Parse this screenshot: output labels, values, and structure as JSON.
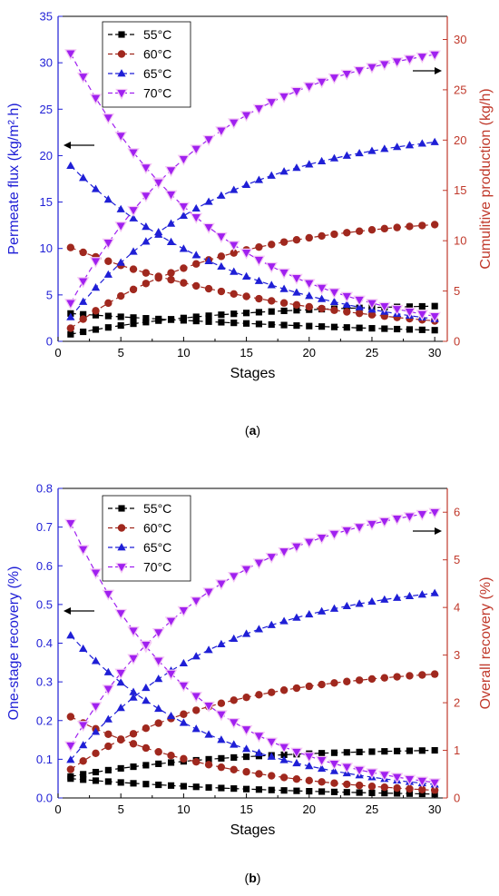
{
  "colors": {
    "left_axis": "#1f1fd6",
    "right_axis": "#c0392b",
    "black": "#000000",
    "s55": "#000000",
    "s60": "#a0281e",
    "s65": "#1f1fd6",
    "s70": "#a020f0"
  },
  "chart_data": [
    {
      "panel_label": "(a)",
      "type": "scatter",
      "xlabel": "Stages",
      "ylabel_left": "Permeate flux (kg/m².h)",
      "ylabel_right": "Cumulitive production (kg/h)",
      "xlim": [
        0,
        31
      ],
      "xticks": [
        0,
        5,
        10,
        15,
        20,
        25,
        30
      ],
      "ylim_left": [
        0,
        35
      ],
      "yticks_left": [
        0,
        5,
        10,
        15,
        20,
        25,
        30,
        35
      ],
      "ylim_right": [
        0,
        32.3
      ],
      "yticks_right": [
        0,
        5,
        10,
        15,
        20,
        25,
        30
      ],
      "legend": {
        "placement": "top-left",
        "entries": [
          "55°C",
          "60°C",
          "65°C",
          "70°C"
        ]
      },
      "arrows": {
        "left": "pointing-left",
        "right": "pointing-right"
      },
      "series": [
        {
          "name": "55°C",
          "axis": "left",
          "role": "flux",
          "first": 3.0,
          "last": 1.2,
          "shape": "exp"
        },
        {
          "name": "55°C",
          "axis": "right",
          "role": "cumulative",
          "first": 0.7,
          "last": 3.5,
          "shape": "cum"
        },
        {
          "name": "60°C",
          "axis": "left",
          "role": "flux",
          "first": 10.1,
          "last": 2.2,
          "shape": "exp"
        },
        {
          "name": "60°C",
          "axis": "right",
          "role": "cumulative",
          "first": 1.3,
          "last": 11.6,
          "shape": "cum"
        },
        {
          "name": "65°C",
          "axis": "left",
          "role": "flux",
          "first": 18.9,
          "last": 2.4,
          "shape": "exp"
        },
        {
          "name": "65°C",
          "axis": "right",
          "role": "cumulative",
          "first": 2.4,
          "last": 19.8,
          "shape": "cum"
        },
        {
          "name": "70°C",
          "axis": "left",
          "role": "flux",
          "first": 31.0,
          "last": 2.7,
          "shape": "exp"
        },
        {
          "name": "70°C",
          "axis": "right",
          "role": "cumulative",
          "first": 3.8,
          "last": 28.5,
          "shape": "cum"
        }
      ]
    },
    {
      "panel_label": "(b)",
      "type": "scatter",
      "xlabel": "Stages",
      "ylabel_left": "One-stage recovery (%)",
      "ylabel_right": "Overall recovery (%)",
      "xlim": [
        0,
        31
      ],
      "xticks": [
        0,
        5,
        10,
        15,
        20,
        25,
        30
      ],
      "ylim_left": [
        0,
        0.8
      ],
      "yticks_left": [
        0.0,
        0.1,
        0.2,
        0.3,
        0.4,
        0.5,
        0.6,
        0.7,
        0.8
      ],
      "ylim_right": [
        0,
        6.5
      ],
      "yticks_right": [
        0,
        1,
        2,
        3,
        4,
        5,
        6
      ],
      "legend": {
        "placement": "top-left",
        "entries": [
          "55°C",
          "60°C",
          "65°C",
          "70°C"
        ]
      },
      "arrows": {
        "left": "pointing-left",
        "right": "pointing-right"
      },
      "series": [
        {
          "name": "55°C",
          "axis": "left",
          "role": "one-stage",
          "first": 0.05,
          "last": 0.01,
          "shape": "exp"
        },
        {
          "name": "55°C",
          "axis": "right",
          "role": "overall",
          "first": 0.45,
          "last": 1.0,
          "shape": "cum"
        },
        {
          "name": "60°C",
          "axis": "left",
          "role": "one-stage",
          "first": 0.21,
          "last": 0.02,
          "shape": "exp"
        },
        {
          "name": "60°C",
          "axis": "right",
          "role": "overall",
          "first": 0.6,
          "last": 2.6,
          "shape": "cum"
        },
        {
          "name": "65°C",
          "axis": "left",
          "role": "one-stage",
          "first": 0.42,
          "last": 0.035,
          "shape": "exp"
        },
        {
          "name": "65°C",
          "axis": "right",
          "role": "overall",
          "first": 0.8,
          "last": 4.3,
          "shape": "cum"
        },
        {
          "name": "70°C",
          "axis": "left",
          "role": "one-stage",
          "first": 0.71,
          "last": 0.04,
          "shape": "exp"
        },
        {
          "name": "70°C",
          "axis": "right",
          "role": "overall",
          "first": 1.1,
          "last": 6.0,
          "shape": "cum"
        }
      ]
    }
  ]
}
